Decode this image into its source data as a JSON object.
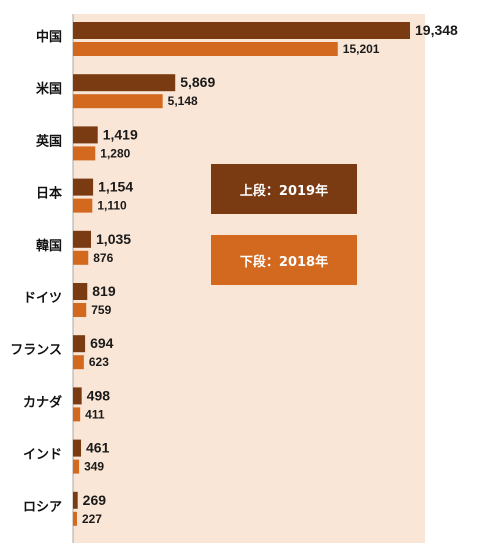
{
  "chart_data": {
    "type": "bar",
    "orientation": "horizontal",
    "categories": [
      "中国",
      "米国",
      "英国",
      "日本",
      "韓国",
      "ドイツ",
      "フランス",
      "カナダ",
      "インド",
      "ロシア"
    ],
    "series": [
      {
        "name": "2019年",
        "values": [
          19348,
          5869,
          1419,
          1154,
          1035,
          819,
          694,
          498,
          461,
          269
        ],
        "labels": [
          "19,348",
          "5,869",
          "1,419",
          "1,154",
          "1,035",
          "819",
          "694",
          "498",
          "461",
          "269"
        ]
      },
      {
        "name": "2018年",
        "values": [
          15201,
          5148,
          1280,
          1110,
          876,
          759,
          623,
          411,
          349,
          227
        ],
        "labels": [
          "15,201",
          "5,148",
          "1,280",
          "1,110",
          "876",
          "759",
          "623",
          "411",
          "349",
          "227"
        ]
      }
    ],
    "xlim": [
      0,
      19348
    ],
    "colors": {
      "series_2019": "#7a3a12",
      "series_2018": "#d2691e",
      "plot_background": "#fae6d6"
    }
  },
  "legend": {
    "upper": {
      "text": "上段：2019年",
      "color": "#7a3a12"
    },
    "lower": {
      "text": "下段：2018年",
      "color": "#d2691e"
    }
  }
}
